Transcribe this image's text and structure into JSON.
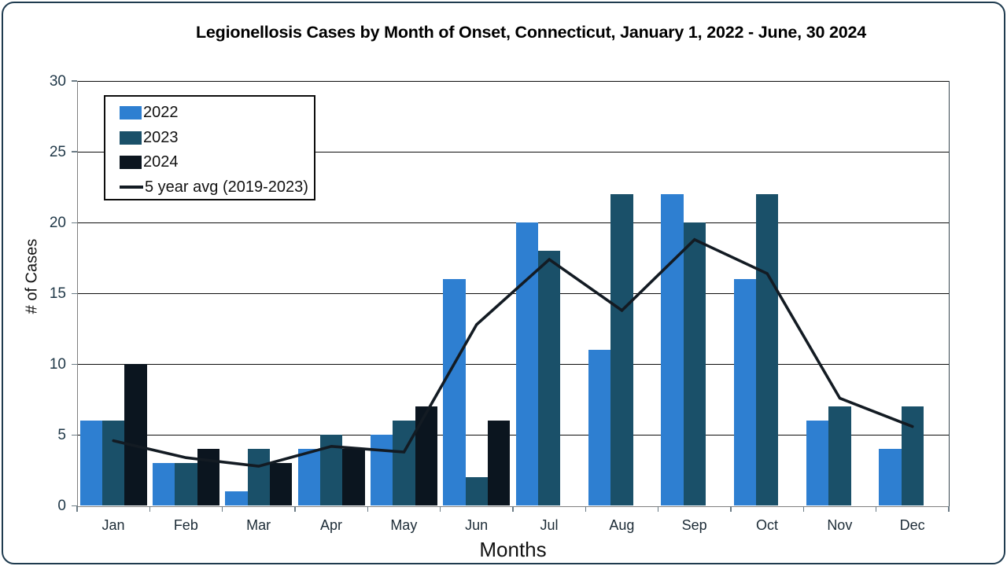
{
  "chart_data": {
    "type": "bar",
    "title": "Legionellosis Cases by Month of Onset, Connecticut, January 1, 2022 - June, 30 2024",
    "xlabel": "Months",
    "ylabel": "# of Cases",
    "ylim": [
      0,
      30
    ],
    "yticks": [
      0,
      5,
      10,
      15,
      20,
      25,
      30
    ],
    "grid": true,
    "legend_position": "top-left",
    "categories": [
      "Jan",
      "Feb",
      "Mar",
      "Apr",
      "May",
      "Jun",
      "Jul",
      "Aug",
      "Sep",
      "Oct",
      "Nov",
      "Dec"
    ],
    "series": [
      {
        "name": "2022",
        "kind": "bar",
        "color": "#2E7FD1",
        "values": [
          6,
          3,
          1,
          4,
          5,
          16,
          20,
          11,
          22,
          16,
          6,
          4
        ]
      },
      {
        "name": "2023",
        "kind": "bar",
        "color": "#1A5069",
        "values": [
          6,
          3,
          4,
          5,
          6,
          2,
          18,
          22,
          20,
          22,
          7,
          7
        ]
      },
      {
        "name": "2024",
        "kind": "bar",
        "color": "#0B151F",
        "values": [
          10,
          4,
          3,
          4,
          7,
          6,
          null,
          null,
          null,
          null,
          null,
          null
        ]
      },
      {
        "name": "5 year avg (2019-2023)",
        "kind": "line",
        "color": "#131B23",
        "values": [
          4.6,
          3.4,
          2.8,
          4.2,
          3.8,
          12.8,
          17.4,
          13.8,
          18.8,
          16.4,
          7.6,
          5.6
        ]
      }
    ],
    "colors": {
      "axis": "#808080",
      "gridline": "#0d0d0d",
      "tick_label": "#1F3747",
      "frame_border": "#1F3B4F"
    }
  }
}
